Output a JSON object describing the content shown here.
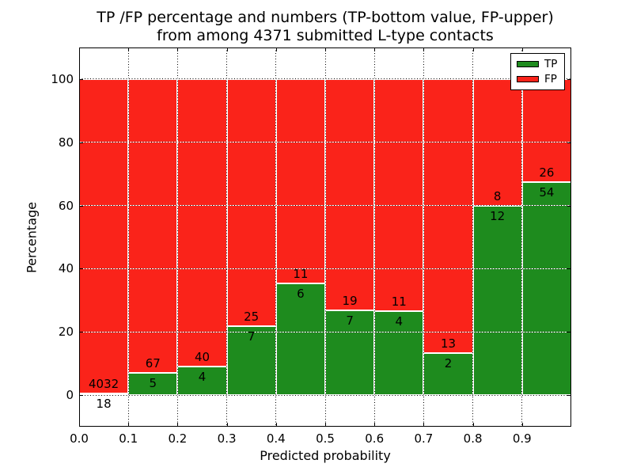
{
  "title": {
    "line1": "TP /FP percentage and numbers (TP-bottom value, FP-upper)",
    "line2": "from among 4371 submitted L-type contacts"
  },
  "chart_data": {
    "type": "bar",
    "stacked": true,
    "normalized": "each bin stacked to 100%",
    "title": "TP /FP percentage and numbers (TP-bottom value, FP-upper) from among 4371 submitted L-type contacts",
    "xlabel": "Predicted probability",
    "ylabel": "Percentage",
    "total_contacts": 4371,
    "bin_starts": [
      0.0,
      0.1,
      0.2,
      0.3,
      0.4,
      0.5,
      0.6,
      0.7,
      0.8,
      0.9
    ],
    "bin_width": 0.1,
    "series": [
      {
        "name": "TP",
        "color": "#1e8b1e",
        "counts": [
          18,
          5,
          4,
          7,
          6,
          7,
          4,
          2,
          12,
          54
        ]
      },
      {
        "name": "FP",
        "color": "#fa231a",
        "counts": [
          4032,
          67,
          40,
          25,
          11,
          19,
          11,
          13,
          8,
          26
        ]
      }
    ],
    "tp_percent": [
      0.44,
      6.94,
      9.09,
      21.88,
      35.29,
      26.92,
      26.67,
      13.33,
      60.0,
      67.5
    ],
    "x_ticks": [
      "0.0",
      "0.1",
      "0.2",
      "0.3",
      "0.4",
      "0.5",
      "0.6",
      "0.7",
      "0.8",
      "0.9"
    ],
    "y_ticks": [
      0,
      20,
      40,
      60,
      80,
      100
    ],
    "xlim": [
      0.0,
      1.0
    ],
    "ylim": [
      -10,
      110
    ],
    "grid": "dotted",
    "legend": {
      "position": "upper right",
      "entries": [
        {
          "label": "TP",
          "color": "#1e8b1e"
        },
        {
          "label": "FP",
          "color": "#fa231a"
        }
      ]
    }
  },
  "colors": {
    "tp_green": "#1e8b1e",
    "fp_red": "#fa231a",
    "background": "#ffffff",
    "grid": "#000000",
    "bar_edge": "#ffffff"
  }
}
